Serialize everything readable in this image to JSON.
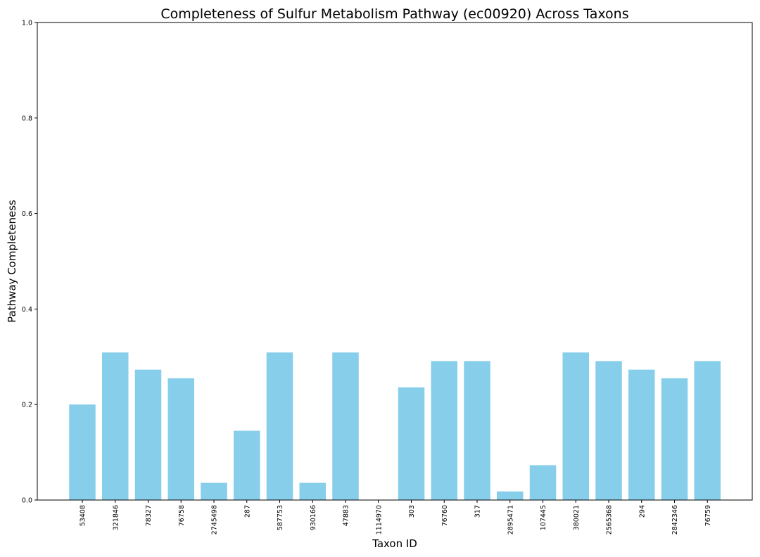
{
  "chart_data": {
    "type": "bar",
    "title": "Completeness of Sulfur Metabolism Pathway (ec00920) Across Taxons",
    "xlabel": "Taxon ID",
    "ylabel": "Pathway Completeness",
    "ylim": [
      0,
      1.0
    ],
    "yticks": [
      "0.0",
      "0.2",
      "0.4",
      "0.6",
      "0.8",
      "1.0"
    ],
    "grid": false,
    "bar_color": "#87ceeb",
    "categories": [
      "53408",
      "321846",
      "78327",
      "76758",
      "2745498",
      "287",
      "587753",
      "930166",
      "47883",
      "1114970",
      "303",
      "76760",
      "317",
      "2895471",
      "107445",
      "380021",
      "2565368",
      "294",
      "2842346",
      "76759"
    ],
    "values": [
      0.2,
      0.309,
      0.273,
      0.255,
      0.036,
      0.145,
      0.309,
      0.036,
      0.309,
      0.0,
      0.236,
      0.291,
      0.291,
      0.018,
      0.073,
      0.309,
      0.291,
      0.273,
      0.255,
      0.291
    ]
  }
}
